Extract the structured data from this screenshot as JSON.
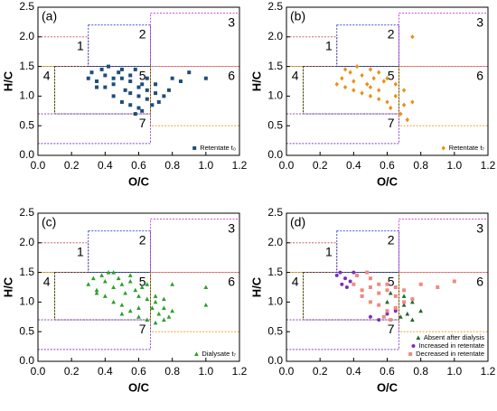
{
  "chart_data": [
    {
      "type": "scatter",
      "title": "(a)",
      "xlabel": "O/C",
      "ylabel": "H/C",
      "xlim": [
        0,
        1.2
      ],
      "ylim": [
        0,
        2.5
      ],
      "xticks": [
        {
          "value": 0,
          "label": "0.0"
        },
        0.2,
        0.4,
        0.6,
        0.8,
        {
          "value": 1,
          "label": "1.0"
        },
        1.2
      ],
      "yticks": [
        {
          "value": 0,
          "label": "0.0"
        },
        0.5,
        {
          "value": 1,
          "label": "1.0"
        },
        1.5,
        {
          "value": 2,
          "label": "2.0"
        },
        2.5
      ],
      "legend": "lower right",
      "regions": [
        {
          "label": "1",
          "x": [
            0,
            0.3
          ],
          "y": [
            1.5,
            2.0
          ],
          "color": "#c0504d"
        },
        {
          "label": "2",
          "x": [
            0.3,
            0.67
          ],
          "y": [
            1.5,
            2.2
          ],
          "color": "#2f3fd1"
        },
        {
          "label": "3",
          "x": [
            0.67,
            1.2
          ],
          "y": [
            1.5,
            2.4
          ],
          "color": "#c83ccf"
        },
        {
          "label": "4",
          "x": [
            0,
            0.1
          ],
          "y": [
            0.7,
            1.5
          ],
          "color": "#b5b000"
        },
        {
          "label": "5",
          "x": [
            0.1,
            0.67
          ],
          "y": [
            0.7,
            1.5
          ],
          "color": "#222222"
        },
        {
          "label": "6",
          "x": [
            0.67,
            1.2
          ],
          "y": [
            0.5,
            1.5
          ],
          "color": "#e39a1c"
        },
        {
          "label": "7",
          "x": [
            0,
            0.67
          ],
          "y": [
            0.2,
            0.7
          ],
          "color": "#8a3cc8"
        }
      ],
      "series": [
        {
          "name": "Retentate t₀",
          "color": "#1f4e79",
          "marker": "square",
          "x": [
            0.3,
            0.32,
            0.35,
            0.38,
            0.4,
            0.42,
            0.45,
            0.48,
            0.5,
            0.52,
            0.55,
            0.58,
            0.6,
            0.62,
            0.65,
            0.4,
            0.45,
            0.5,
            0.55,
            0.6,
            0.65,
            0.7,
            0.72,
            0.75,
            0.5,
            0.55,
            0.6,
            0.65,
            0.7,
            0.58,
            0.62,
            0.68,
            0.78,
            0.8,
            0.85,
            0.9,
            1.0,
            0.35,
            0.45,
            0.55
          ],
          "y": [
            1.3,
            1.4,
            1.25,
            1.45,
            1.35,
            1.5,
            1.2,
            1.4,
            1.3,
            1.1,
            1.25,
            1.45,
            1.0,
            1.2,
            1.1,
            1.15,
            1.0,
            0.9,
            0.85,
            0.8,
            0.95,
            1.05,
            0.9,
            1.0,
            1.45,
            1.35,
            1.15,
            1.3,
            1.2,
            0.7,
            0.75,
            0.85,
            1.1,
            1.3,
            1.25,
            1.4,
            1.3,
            1.15,
            1.3,
            1.05
          ]
        }
      ]
    },
    {
      "type": "scatter",
      "title": "(b)",
      "xlabel": "O/C",
      "ylabel": "H/C",
      "xlim": [
        0,
        1.2
      ],
      "ylim": [
        0,
        2.5
      ],
      "xticks": [
        {
          "value": 0,
          "label": "0.0"
        },
        0.2,
        0.4,
        0.6,
        0.8,
        {
          "value": 1,
          "label": "1.0"
        },
        1.2
      ],
      "yticks": [
        {
          "value": 0,
          "label": "0.0"
        },
        0.5,
        {
          "value": 1,
          "label": "1.0"
        },
        1.5,
        {
          "value": 2,
          "label": "2.0"
        },
        2.5
      ],
      "legend": "lower right",
      "regions": [
        {
          "label": "1",
          "x": [
            0,
            0.3
          ],
          "y": [
            1.5,
            2.0
          ],
          "color": "#c0504d"
        },
        {
          "label": "2",
          "x": [
            0.3,
            0.67
          ],
          "y": [
            1.5,
            2.2
          ],
          "color": "#2f3fd1"
        },
        {
          "label": "3",
          "x": [
            0.67,
            1.2
          ],
          "y": [
            1.5,
            2.4
          ],
          "color": "#c83ccf"
        },
        {
          "label": "4",
          "x": [
            0,
            0.1
          ],
          "y": [
            0.7,
            1.5
          ],
          "color": "#b5b000"
        },
        {
          "label": "5",
          "x": [
            0.1,
            0.67
          ],
          "y": [
            0.7,
            1.5
          ],
          "color": "#222222"
        },
        {
          "label": "6",
          "x": [
            0.67,
            1.2
          ],
          "y": [
            0.5,
            1.5
          ],
          "color": "#e39a1c"
        },
        {
          "label": "7",
          "x": [
            0,
            0.67
          ],
          "y": [
            0.2,
            0.7
          ],
          "color": "#8a3cc8"
        }
      ],
      "series": [
        {
          "name": "Retentate t₇",
          "color": "#e8901a",
          "marker": "diamond",
          "x": [
            0.3,
            0.33,
            0.35,
            0.38,
            0.4,
            0.42,
            0.45,
            0.48,
            0.5,
            0.52,
            0.55,
            0.58,
            0.4,
            0.45,
            0.5,
            0.55,
            0.6,
            0.62,
            0.65,
            0.68,
            0.7,
            0.72,
            0.75,
            0.6,
            0.65,
            0.7,
            0.5,
            0.55,
            0.75,
            0.35
          ],
          "y": [
            1.2,
            1.3,
            1.15,
            1.4,
            1.25,
            1.5,
            1.35,
            1.2,
            1.45,
            1.3,
            1.1,
            1.25,
            1.1,
            1.05,
            1.15,
            0.95,
            0.9,
            0.8,
            1.0,
            0.7,
            0.85,
            0.6,
            0.9,
            1.3,
            1.2,
            1.1,
            1.0,
            1.4,
            2.0,
            1.45
          ]
        }
      ]
    },
    {
      "type": "scatter",
      "title": "(c)",
      "xlabel": "O/C",
      "ylabel": "H/C",
      "xlim": [
        0,
        1.2
      ],
      "ylim": [
        0,
        2.5
      ],
      "xticks": [
        {
          "value": 0,
          "label": "0.0"
        },
        0.2,
        0.4,
        0.6,
        0.8,
        {
          "value": 1,
          "label": "1.0"
        },
        1.2
      ],
      "yticks": [
        {
          "value": 0,
          "label": "0.0"
        },
        0.5,
        {
          "value": 1,
          "label": "1.0"
        },
        1.5,
        {
          "value": 2,
          "label": "2.0"
        },
        2.5
      ],
      "legend": "lower right",
      "regions": [
        {
          "label": "1",
          "x": [
            0,
            0.3
          ],
          "y": [
            1.5,
            2.0
          ],
          "color": "#c0504d"
        },
        {
          "label": "2",
          "x": [
            0.3,
            0.67
          ],
          "y": [
            1.5,
            2.2
          ],
          "color": "#2f3fd1"
        },
        {
          "label": "3",
          "x": [
            0.67,
            1.2
          ],
          "y": [
            1.5,
            2.4
          ],
          "color": "#c83ccf"
        },
        {
          "label": "4",
          "x": [
            0,
            0.1
          ],
          "y": [
            0.7,
            1.5
          ],
          "color": "#b5b000"
        },
        {
          "label": "5",
          "x": [
            0.1,
            0.67
          ],
          "y": [
            0.7,
            1.5
          ],
          "color": "#222222"
        },
        {
          "label": "6",
          "x": [
            0.67,
            1.2
          ],
          "y": [
            0.5,
            1.5
          ],
          "color": "#e39a1c"
        },
        {
          "label": "7",
          "x": [
            0,
            0.67
          ],
          "y": [
            0.2,
            0.7
          ],
          "color": "#8a3cc8"
        }
      ],
      "series": [
        {
          "name": "Dialysate t₇",
          "color": "#2ca02c",
          "marker": "triangle",
          "x": [
            0.3,
            0.33,
            0.35,
            0.38,
            0.4,
            0.42,
            0.45,
            0.48,
            0.5,
            0.52,
            0.55,
            0.58,
            0.6,
            0.62,
            0.65,
            0.68,
            0.7,
            0.72,
            0.75,
            0.78,
            0.8,
            0.4,
            0.45,
            0.5,
            0.55,
            0.6,
            0.65,
            0.7,
            0.75,
            0.35,
            0.45,
            0.55,
            0.65,
            0.5,
            0.6,
            0.7,
            0.75,
            1.0,
            1.0,
            0.8
          ],
          "y": [
            1.3,
            1.4,
            1.2,
            1.45,
            1.35,
            1.5,
            1.25,
            1.4,
            1.3,
            1.15,
            1.45,
            1.2,
            1.1,
            1.25,
            1.05,
            0.9,
            1.0,
            0.8,
            0.9,
            0.75,
            0.85,
            1.1,
            1.0,
            0.95,
            0.85,
            0.75,
            0.7,
            1.1,
            1.05,
            1.15,
            1.5,
            1.35,
            1.3,
            0.8,
            0.9,
            0.65,
            0.7,
            1.25,
            0.95,
            1.3
          ]
        }
      ]
    },
    {
      "type": "scatter",
      "title": "(d)",
      "xlabel": "O/C",
      "ylabel": "H/C",
      "xlim": [
        0,
        1.2
      ],
      "ylim": [
        0,
        2.5
      ],
      "xticks": [
        {
          "value": 0,
          "label": "0.0"
        },
        0.2,
        0.4,
        0.6,
        0.8,
        {
          "value": 1,
          "label": "1.0"
        },
        1.2
      ],
      "yticks": [
        {
          "value": 0,
          "label": "0.0"
        },
        0.5,
        {
          "value": 1,
          "label": "1.0"
        },
        1.5,
        {
          "value": 2,
          "label": "2.0"
        },
        2.5
      ],
      "legend": "lower right",
      "regions": [
        {
          "label": "1",
          "x": [
            0,
            0.3
          ],
          "y": [
            1.5,
            2.0
          ],
          "color": "#c0504d"
        },
        {
          "label": "2",
          "x": [
            0.3,
            0.67
          ],
          "y": [
            1.5,
            2.2
          ],
          "color": "#2f3fd1"
        },
        {
          "label": "3",
          "x": [
            0.67,
            1.2
          ],
          "y": [
            1.5,
            2.4
          ],
          "color": "#c83ccf"
        },
        {
          "label": "4",
          "x": [
            0,
            0.1
          ],
          "y": [
            0.7,
            1.5
          ],
          "color": "#b5b000"
        },
        {
          "label": "5",
          "x": [
            0.1,
            0.67
          ],
          "y": [
            0.7,
            1.5
          ],
          "color": "#222222"
        },
        {
          "label": "6",
          "x": [
            0.67,
            1.2
          ],
          "y": [
            0.5,
            1.5
          ],
          "color": "#e39a1c"
        },
        {
          "label": "7",
          "x": [
            0,
            0.67
          ],
          "y": [
            0.2,
            0.7
          ],
          "color": "#8a3cc8"
        }
      ],
      "series": [
        {
          "name": "Absent after dialysis",
          "color": "#1e6b2f",
          "marker": "triangle",
          "x": [
            0.6,
            0.65,
            0.7,
            0.72,
            0.75,
            0.68,
            0.62,
            0.7,
            0.75,
            0.8
          ],
          "y": [
            1.0,
            0.9,
            1.1,
            0.8,
            0.7,
            0.75,
            1.15,
            0.95,
            1.0,
            0.85
          ]
        },
        {
          "name": "Increased in retentate",
          "color": "#7b2fbe",
          "marker": "circle",
          "x": [
            0.3,
            0.32,
            0.35,
            0.38,
            0.4,
            0.42,
            0.33,
            0.36,
            0.5,
            0.55,
            0.6,
            0.65,
            0.45
          ],
          "y": [
            1.45,
            1.5,
            1.4,
            1.35,
            1.5,
            1.45,
            1.3,
            1.25,
            0.75,
            0.7,
            0.8,
            0.85,
            1.1
          ]
        },
        {
          "name": "Decreased in retentate",
          "color": "#f08a80",
          "marker": "square",
          "x": [
            0.4,
            0.45,
            0.5,
            0.55,
            0.6,
            0.65,
            0.5,
            0.55,
            0.6,
            0.65,
            0.7,
            0.45,
            0.5,
            0.55,
            0.6,
            0.65,
            0.7,
            0.75,
            0.58,
            0.62,
            0.8,
            0.9,
            1.0,
            0.42,
            0.48
          ],
          "y": [
            1.3,
            1.2,
            1.4,
            1.3,
            1.2,
            1.1,
            1.0,
            0.95,
            0.85,
            0.9,
            1.0,
            1.1,
            1.25,
            1.15,
            1.3,
            1.25,
            1.2,
            1.05,
            0.75,
            0.7,
            1.3,
            1.25,
            1.35,
            1.45,
            1.5
          ]
        }
      ]
    }
  ]
}
